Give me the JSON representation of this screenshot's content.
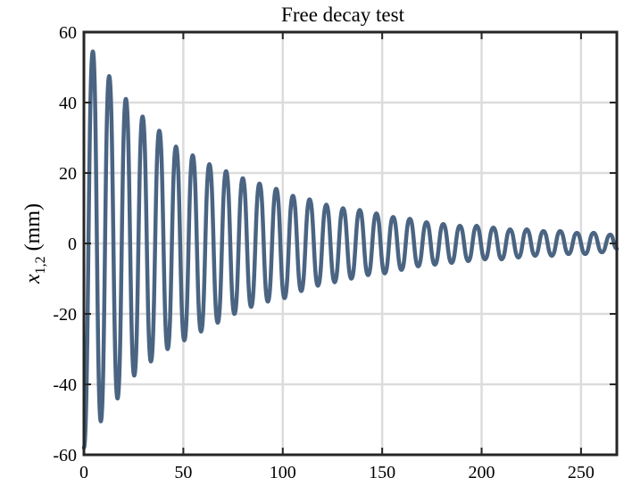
{
  "chart_data": {
    "type": "line",
    "title": "Free decay test",
    "xlabel": "",
    "ylabel": {
      "main": "x",
      "subscript": "1,2",
      "unit": "(mm)"
    },
    "xlim": [
      0,
      268
    ],
    "ylim": [
      -60,
      60
    ],
    "xticks": [
      0,
      50,
      100,
      150,
      200,
      250
    ],
    "yticks": [
      -60,
      -40,
      -20,
      0,
      20,
      40,
      60
    ],
    "xtick_labels": [
      "0",
      "50",
      "100",
      "150",
      "200",
      "250"
    ],
    "ytick_labels": [
      "-60",
      "-40",
      "-20",
      "0",
      "20",
      "40",
      "60"
    ],
    "grid": true,
    "series": [
      {
        "color": "#4a6482",
        "x": [
          0,
          4.5,
          8.5,
          12.7,
          16.9,
          21.1,
          25.3,
          29.5,
          33.7,
          37.9,
          42.1,
          46.3,
          50.5,
          54.7,
          58.9,
          63.1,
          67.3,
          71.5,
          75.7,
          79.9,
          84.1,
          88.3,
          92.5,
          96.7,
          100.9,
          105.1,
          109.3,
          113.5,
          117.7,
          121.9,
          126.1,
          130.3,
          134.5,
          138.7,
          142.9,
          147.1,
          151.3,
          155.5,
          159.7,
          163.9,
          168.1,
          172.3,
          176.5,
          180.7,
          184.9,
          189.1,
          193.3,
          197.5,
          201.7,
          205.9,
          210.1,
          214.3,
          218.5,
          222.7,
          226.9,
          231.1,
          235.3,
          239.5,
          243.7,
          247.9,
          252.1,
          256.3,
          260.5,
          264.7,
          268
        ],
        "y": [
          -58,
          54.5,
          -50.5,
          47.5,
          -44,
          41,
          -37.5,
          36,
          -33.5,
          32,
          -30,
          27.5,
          -27.5,
          25,
          -25,
          22.5,
          -22.5,
          20.5,
          -20,
          18.5,
          -18,
          17,
          -16.5,
          15.5,
          -15.5,
          13.5,
          -13.5,
          12.5,
          -12,
          11,
          -11,
          10,
          -10,
          9.5,
          -9,
          8.5,
          -8.5,
          7.5,
          -7.5,
          7,
          -6.5,
          6,
          -6,
          5.5,
          -5.5,
          5,
          -5,
          5,
          -4.5,
          4.5,
          -4.5,
          4,
          -4,
          4,
          -3.5,
          3.5,
          -3.5,
          3.5,
          -3,
          3,
          -3,
          3,
          -2.5,
          2.5,
          -1.5
        ]
      }
    ]
  }
}
